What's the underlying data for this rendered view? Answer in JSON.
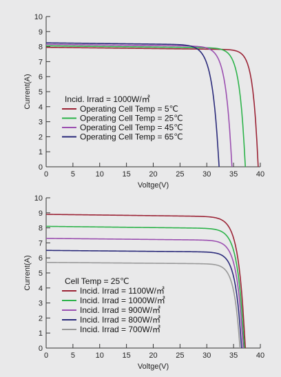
{
  "chart_data": [
    {
      "type": "line",
      "xlabel": "Voltge(V)",
      "ylabel": "Current(A)",
      "xlim": [
        0,
        40
      ],
      "ylim": [
        0,
        10
      ],
      "xticks": [
        0,
        5,
        10,
        15,
        20,
        25,
        30,
        35,
        40
      ],
      "yticks": [
        0,
        1,
        2,
        3,
        4,
        5,
        6,
        7,
        8,
        9,
        10
      ],
      "grid": false,
      "legend_position": "lower-left",
      "legend_title": "Incid. Irrad = 1000W/㎡",
      "series": [
        {
          "name": "Operating Cell Temp = 5℃",
          "color": "#9b2335",
          "isc": 7.95,
          "voc": 39.6,
          "knee": 34.0
        },
        {
          "name": "Operating Cell Temp = 25℃",
          "color": "#2db34a",
          "isc": 8.05,
          "voc": 37.2,
          "knee": 31.0
        },
        {
          "name": "Operating Cell Temp = 45℃",
          "color": "#9b4fb0",
          "isc": 8.15,
          "voc": 34.7,
          "knee": 28.0
        },
        {
          "name": "Operating Cell Temp = 65℃",
          "color": "#2a2a7a",
          "isc": 8.25,
          "voc": 32.3,
          "knee": 25.0
        }
      ]
    },
    {
      "type": "line",
      "xlabel": "Voltge(V)",
      "ylabel": "Current(A)",
      "xlim": [
        0,
        40
      ],
      "ylim": [
        0,
        10
      ],
      "xticks": [
        0,
        5,
        10,
        15,
        20,
        25,
        30,
        35,
        40
      ],
      "yticks": [
        0,
        1,
        2,
        3,
        4,
        5,
        6,
        7,
        8,
        9,
        10
      ],
      "grid": false,
      "legend_position": "lower-left",
      "legend_title": "Cell Temp = 25℃",
      "series": [
        {
          "name": "Incid. Irrad = 1100W/㎡",
          "color": "#9b2335",
          "isc": 8.9,
          "voc": 37.2,
          "knee": 30.0
        },
        {
          "name": "Incid. Irrad = 1000W/㎡",
          "color": "#2db34a",
          "isc": 8.1,
          "voc": 37.0,
          "knee": 30.0
        },
        {
          "name": "Incid. Irrad = 900W/㎡",
          "color": "#9b4fb0",
          "isc": 7.3,
          "voc": 36.8,
          "knee": 30.0
        },
        {
          "name": "Incid. Irrad = 800W/㎡",
          "color": "#2a2a7a",
          "isc": 6.5,
          "voc": 36.5,
          "knee": 30.0
        },
        {
          "name": "Incid. Irrad = 700W/㎡",
          "color": "#999999",
          "isc": 5.7,
          "voc": 36.2,
          "knee": 30.0
        }
      ]
    }
  ]
}
